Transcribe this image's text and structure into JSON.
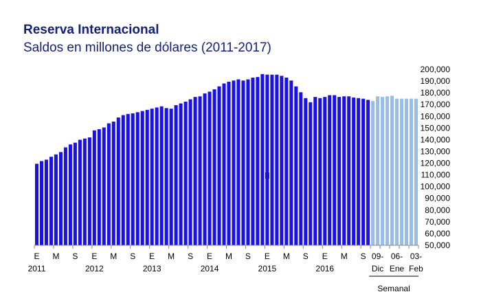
{
  "chart_data": {
    "type": "bar",
    "title": "Reserva Internacional",
    "subtitle": "Saldos en millones de dólares (2011-2017)",
    "y_ticks": [
      "50,000",
      "60,000",
      "70,000",
      "80,000",
      "90,000",
      "100,000",
      "110,000",
      "120,000",
      "130,000",
      "140,000",
      "150,000",
      "160,000",
      "170,000",
      "180,000",
      "190,000",
      "200,000"
    ],
    "ylim": [
      50000,
      200000
    ],
    "grid": false,
    "colors": {
      "monthly": "#1a10e8",
      "weekly": "#99bde6"
    },
    "monthly_series": {
      "values": [
        119500,
        121800,
        123000,
        125500,
        127500,
        129500,
        133500,
        136000,
        137500,
        140000,
        141000,
        142000,
        148000,
        149000,
        150500,
        154000,
        155500,
        159000,
        161000,
        162000,
        162500,
        163500,
        164500,
        165500,
        166500,
        167500,
        168500,
        167000,
        166500,
        169500,
        171000,
        172500,
        174500,
        176500,
        177000,
        179500,
        181000,
        183000,
        185500,
        188000,
        189500,
        190500,
        191500,
        190500,
        191500,
        193000,
        193500,
        196000,
        195500,
        195500,
        195500,
        194500,
        193000,
        190500,
        185500,
        180500,
        175500,
        172000,
        176500,
        175500,
        176500,
        178000,
        178000,
        176500,
        177000,
        177000,
        176000,
        175500,
        175000,
        174000
      ],
      "month_labels": [
        "E",
        "M",
        "S",
        "E",
        "M",
        "S",
        "E",
        "M",
        "S",
        "E",
        "M",
        "S",
        "E",
        "M",
        "S",
        "E",
        "M",
        "S"
      ],
      "year_labels": [
        "2011",
        "2012",
        "2013",
        "2014",
        "2015",
        "2016"
      ]
    },
    "weekly_series": {
      "values": [
        173000,
        177000,
        176500,
        177000,
        177500,
        175000,
        175000,
        175000,
        175000,
        175000
      ],
      "date_labels": [
        [
          "09-",
          "Dic"
        ],
        [
          "06-",
          "Ene"
        ],
        [
          "03-",
          "Feb"
        ]
      ],
      "group_label": "Semanal"
    }
  }
}
